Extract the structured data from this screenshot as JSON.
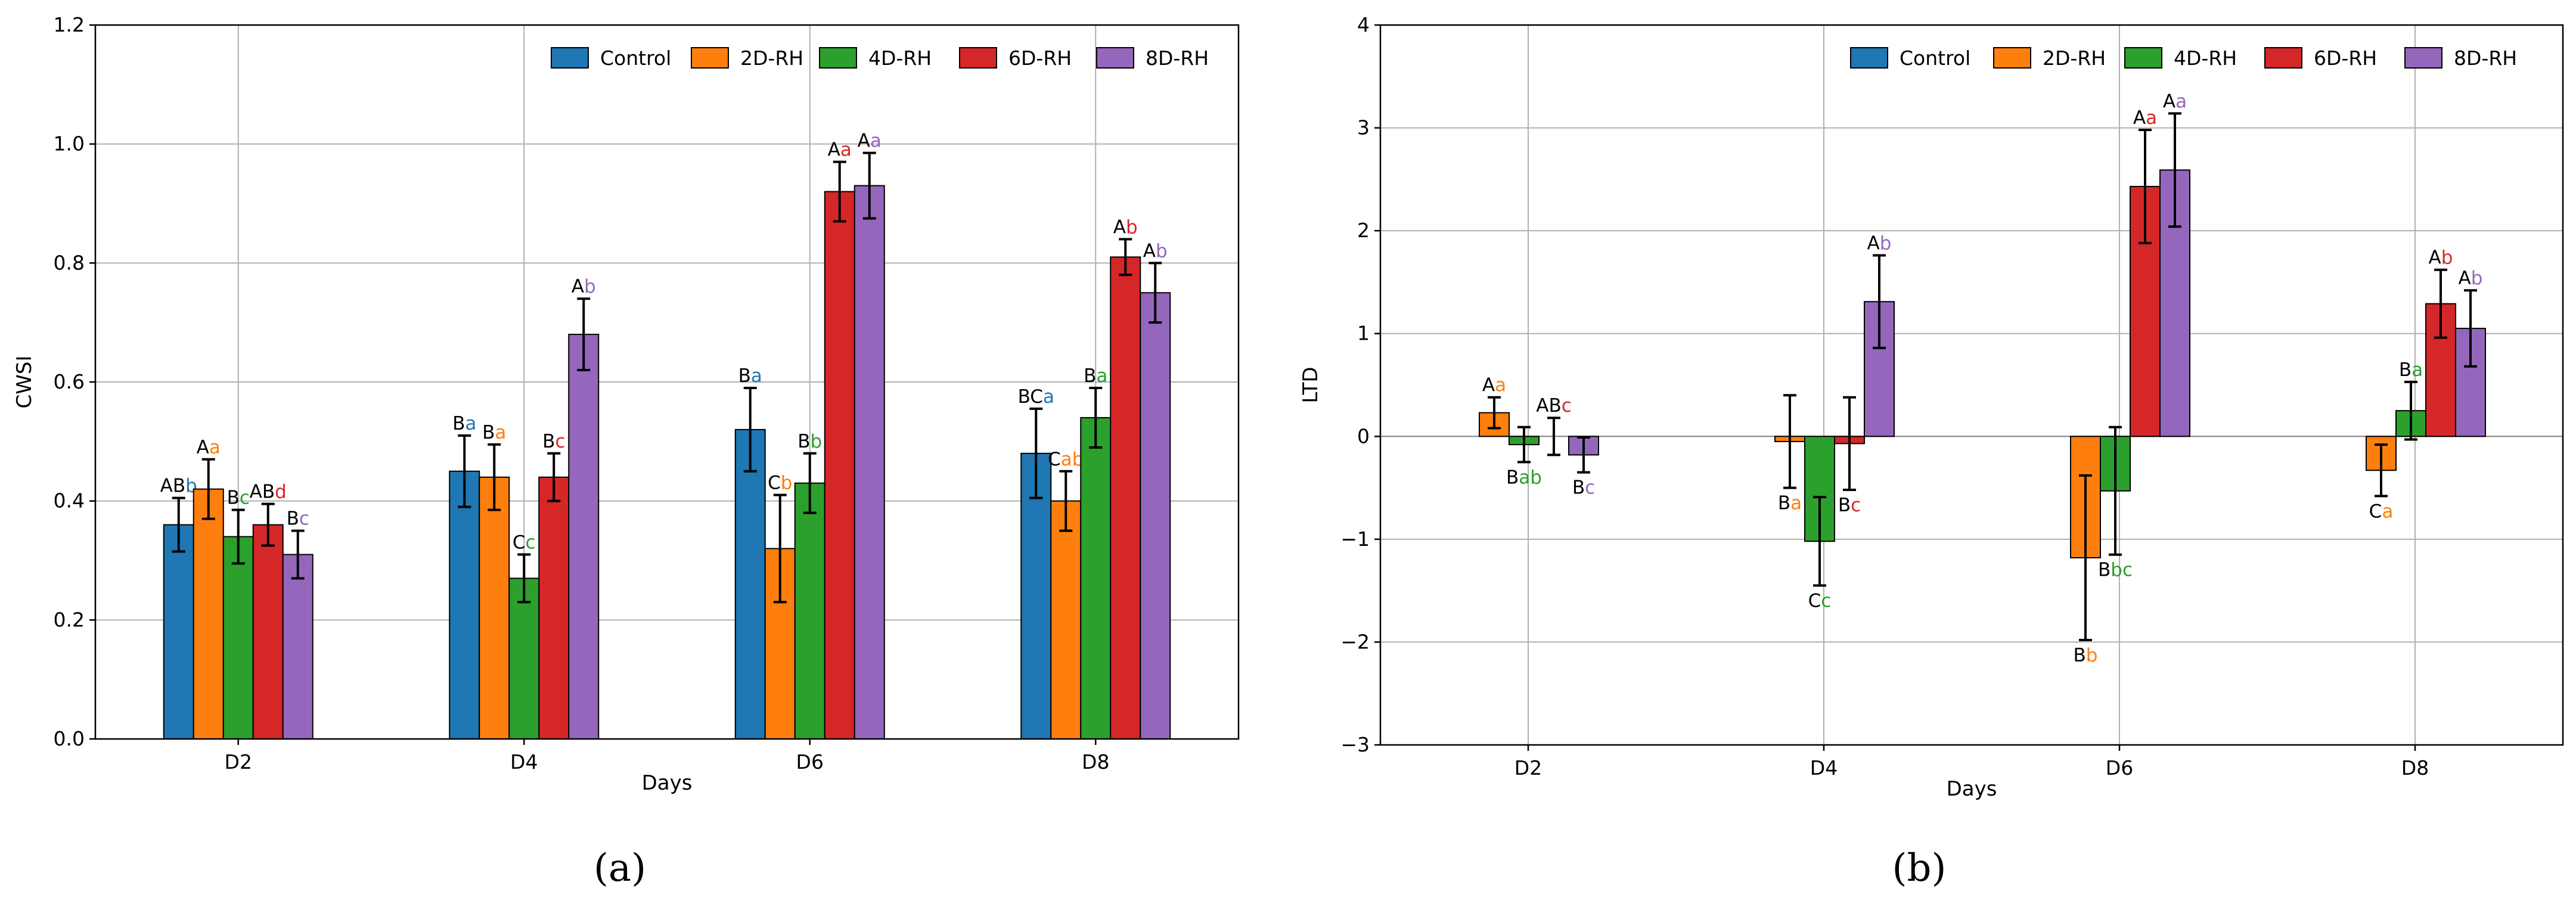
{
  "colors": {
    "Control": "#1f77b4",
    "2D-RH": "#ff7f0e",
    "4D-RH": "#2ca02c",
    "6D-RH": "#d62728",
    "8D-RH": "#9467bd",
    "grid": "#b0b0b0"
  },
  "chart_data": [
    {
      "type": "bar",
      "panel_label": "(a)",
      "ylabel": "CWSI",
      "xlabel": "Days",
      "categories": [
        "D2",
        "D4",
        "D6",
        "D8"
      ],
      "ylim": [
        0.0,
        1.2
      ],
      "yticks": [
        0.0,
        0.2,
        0.4,
        0.6,
        0.8,
        1.0,
        1.2
      ],
      "ytick_labels": [
        "0.0",
        "0.2",
        "0.4",
        "0.6",
        "0.8",
        "1.0",
        "1.2"
      ],
      "grid": true,
      "legend_position": "top-right",
      "series": [
        {
          "name": "Control",
          "values": [
            0.36,
            0.45,
            0.52,
            0.48
          ],
          "errors": [
            0.045,
            0.06,
            0.07,
            0.075
          ],
          "letters": [
            [
              "AB",
              "b"
            ],
            [
              "B",
              "a"
            ],
            [
              "B",
              "a"
            ],
            [
              "BC",
              "a"
            ]
          ]
        },
        {
          "name": "2D-RH",
          "values": [
            0.42,
            0.44,
            0.32,
            0.4
          ],
          "errors": [
            0.05,
            0.055,
            0.09,
            0.05
          ],
          "letters": [
            [
              "A",
              "a"
            ],
            [
              "B",
              "a"
            ],
            [
              "C",
              "b"
            ],
            [
              "C",
              "ab"
            ]
          ]
        },
        {
          "name": "4D-RH",
          "values": [
            0.34,
            0.27,
            0.43,
            0.54
          ],
          "errors": [
            0.045,
            0.04,
            0.05,
            0.05
          ],
          "letters": [
            [
              "B",
              "c"
            ],
            [
              "C",
              "c"
            ],
            [
              "B",
              "b"
            ],
            [
              "B",
              "a"
            ]
          ]
        },
        {
          "name": "6D-RH",
          "values": [
            0.36,
            0.44,
            0.92,
            0.81
          ],
          "errors": [
            0.035,
            0.04,
            0.05,
            0.03
          ],
          "letters": [
            [
              "AB",
              "d"
            ],
            [
              "B",
              "c"
            ],
            [
              "A",
              "a"
            ],
            [
              "A",
              "b"
            ]
          ]
        },
        {
          "name": "8D-RH",
          "values": [
            0.31,
            0.68,
            0.93,
            0.75
          ],
          "errors": [
            0.04,
            0.06,
            0.055,
            0.05
          ],
          "letters": [
            [
              "B",
              "c"
            ],
            [
              "A",
              "b"
            ],
            [
              "A",
              "a"
            ],
            [
              "A",
              "b"
            ]
          ]
        }
      ]
    },
    {
      "type": "bar",
      "panel_label": "(b)",
      "ylabel": "LTD",
      "xlabel": "Days",
      "categories": [
        "D2",
        "D4",
        "D6",
        "D8"
      ],
      "ylim": [
        -3,
        4
      ],
      "yticks": [
        -3,
        -2,
        -1,
        0,
        1,
        2,
        3,
        4
      ],
      "ytick_labels": [
        "−3",
        "−2",
        "−1",
        "0",
        "1",
        "2",
        "3",
        "4"
      ],
      "grid": true,
      "legend_position": "top-right",
      "series": [
        {
          "name": "Control",
          "values": [
            0,
            0,
            0,
            0
          ],
          "errors": [
            0,
            0,
            0,
            0
          ],
          "letters": [
            null,
            null,
            null,
            null
          ]
        },
        {
          "name": "2D-RH",
          "values": [
            0.23,
            -0.05,
            -1.18,
            -0.33
          ],
          "errors": [
            0.15,
            0.45,
            0.8,
            0.25
          ],
          "letters": [
            [
              "A",
              "a"
            ],
            [
              "B",
              "a"
            ],
            [
              "B",
              "b"
            ],
            [
              "C",
              "a"
            ]
          ]
        },
        {
          "name": "4D-RH",
          "values": [
            -0.08,
            -1.02,
            -0.53,
            0.25
          ],
          "errors": [
            0.17,
            0.43,
            0.62,
            0.28
          ],
          "letters": [
            [
              "B",
              "ab"
            ],
            [
              "C",
              "c"
            ],
            [
              "B",
              "bc"
            ],
            [
              "B",
              "a"
            ]
          ]
        },
        {
          "name": "6D-RH",
          "values": [
            0.0,
            -0.07,
            2.43,
            1.29
          ],
          "errors": [
            0.18,
            0.45,
            0.55,
            0.33
          ],
          "letters": [
            [
              "AB",
              "c"
            ],
            [
              "B",
              "c"
            ],
            [
              "A",
              "a"
            ],
            [
              "A",
              "b"
            ]
          ]
        },
        {
          "name": "8D-RH",
          "values": [
            -0.18,
            1.31,
            2.59,
            1.05
          ],
          "errors": [
            0.17,
            0.45,
            0.55,
            0.37
          ],
          "letters": [
            [
              "B",
              "c"
            ],
            [
              "A",
              "b"
            ],
            [
              "A",
              "a"
            ],
            [
              "A",
              "b"
            ]
          ]
        }
      ]
    }
  ]
}
